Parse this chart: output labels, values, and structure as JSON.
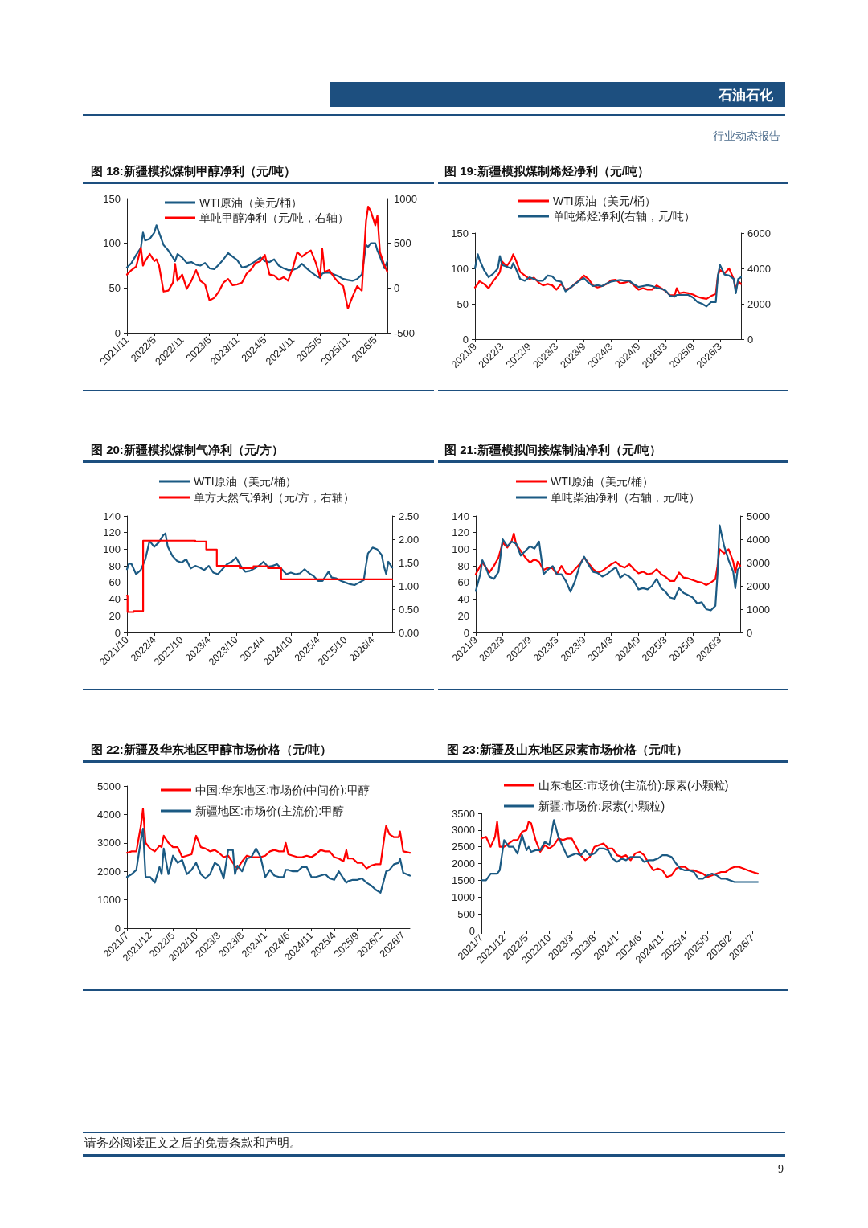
{
  "chart_data": [
    {
      "type": "other",
      "annotations": [
        "石油石化",
        "行业动态报告"
      ]
    },
    {
      "type": "line",
      "title": "图 18:新疆模拟煤制甲醇净利（元/吨）",
      "legend": "top",
      "xlim": [
        "2021-11",
        "2026-07-20"
      ],
      "xticks": [
        {
          "value": "2021-11",
          "label": "2021/11"
        },
        {
          "value": "2022-05",
          "label": "2022/5"
        },
        {
          "value": "2022-11",
          "label": "2022/11"
        },
        {
          "value": "2023-05",
          "label": "2023/5"
        },
        {
          "value": "2023-11",
          "label": "2023/11"
        },
        {
          "value": "2024-05",
          "label": "2024/5"
        },
        {
          "value": "2024-11",
          "label": "2024/11"
        },
        {
          "value": "2025-05",
          "label": "2025/5"
        },
        {
          "value": "2025-11",
          "label": "2025/11"
        },
        {
          "value": "2026-05",
          "label": "2026/5"
        }
      ],
      "ylim": [
        0,
        150
      ],
      "yticks": [
        0,
        50,
        100,
        150
      ],
      "y2lim": [
        -500,
        1000
      ],
      "y2ticks": [
        -500,
        0,
        500,
        1000
      ],
      "x": [
        "2021-11",
        "2021-12",
        "2022-01",
        "2022-02",
        "2022-02-15",
        "2022-03",
        "2022-04",
        "2022-05",
        "2022-05-15",
        "2022-06",
        "2022-07",
        "2022-08",
        "2022-09",
        "2022-09-15",
        "2022-10",
        "2022-11",
        "2022-12",
        "2023-01",
        "2023-02",
        "2023-03",
        "2023-04",
        "2023-05",
        "2023-06",
        "2023-07",
        "2023-08",
        "2023-09",
        "2023-10",
        "2023-11",
        "2023-12",
        "2024-01",
        "2024-02",
        "2024-03",
        "2024-04",
        "2024-05",
        "2024-06",
        "2024-07",
        "2024-08",
        "2024-09",
        "2024-10",
        "2024-11",
        "2024-12",
        "2025-01",
        "2025-02",
        "2025-03",
        "2025-04",
        "2025-05",
        "2025-05-15",
        "2025-06",
        "2025-07",
        "2025-08",
        "2025-09",
        "2025-10",
        "2025-11",
        "2025-12",
        "2026-01",
        "2026-02",
        "2026-03",
        "2026-03-15",
        "2026-04",
        "2026-05",
        "2026-05-15",
        "2026-06",
        "2026-07",
        "2026-07-20"
      ],
      "series": [
        {
          "name": "WTI原油（美元/桶）",
          "color": "#1b5a83",
          "values": [
            73,
            78,
            87,
            95,
            112,
            103,
            105,
            112,
            120,
            112,
            98,
            92,
            84,
            80,
            88,
            84,
            78,
            79,
            76,
            75,
            78,
            72,
            71,
            76,
            82,
            89,
            85,
            81,
            73,
            74,
            77,
            80,
            84,
            80,
            79,
            82,
            75,
            72,
            70,
            70,
            72,
            77,
            72,
            68,
            64,
            61,
            66,
            67,
            67,
            65,
            63,
            60,
            59,
            58,
            60,
            65,
            98,
            96,
            100,
            100,
            92,
            85,
            72,
            80
          ]
        },
        {
          "name": "单吨甲醇净利（元/吨，右轴）",
          "color": "#ff0000",
          "axis": "y2",
          "values": [
            150,
            200,
            240,
            450,
            250,
            300,
            380,
            300,
            320,
            250,
            -40,
            -30,
            60,
            270,
            80,
            150,
            -10,
            80,
            200,
            80,
            40,
            -140,
            -110,
            -40,
            60,
            100,
            30,
            40,
            60,
            160,
            210,
            280,
            300,
            370,
            150,
            140,
            90,
            120,
            80,
            220,
            400,
            350,
            390,
            420,
            290,
            120,
            440,
            180,
            200,
            120,
            60,
            20,
            -230,
            -100,
            20,
            -30,
            750,
            910,
            860,
            700,
            810,
            400,
            250,
            180
          ]
        }
      ]
    },
    {
      "type": "line",
      "title": "图 19:新疆模拟煤制烯烃净利（元/吨）",
      "legend": "top",
      "xlim": [
        "2021-09",
        "2026-07-20"
      ],
      "xticks": [
        {
          "value": "2021-09",
          "label": "2021/9"
        },
        {
          "value": "2022-03",
          "label": "2022/3"
        },
        {
          "value": "2022-09",
          "label": "2022/9"
        },
        {
          "value": "2023-03",
          "label": "2023/3"
        },
        {
          "value": "2023-09",
          "label": "2023/9"
        },
        {
          "value": "2024-03",
          "label": "2024/3"
        },
        {
          "value": "2024-09",
          "label": "2024/9"
        },
        {
          "value": "2025-03",
          "label": "2025/3"
        },
        {
          "value": "2025-09",
          "label": "2025/9"
        },
        {
          "value": "2026-03",
          "label": "2026/3"
        }
      ],
      "ylim": [
        0,
        150
      ],
      "yticks": [
        0,
        50,
        100,
        150
      ],
      "y2lim": [
        0,
        6000
      ],
      "y2ticks": [
        0,
        2000,
        4000,
        6000
      ],
      "x": [
        "2021-09",
        "2021-09-20",
        "2021-10",
        "2021-11",
        "2021-12",
        "2022-01",
        "2022-02",
        "2022-02-15",
        "2022-03",
        "2022-04",
        "2022-05",
        "2022-05-15",
        "2022-06",
        "2022-07",
        "2022-08",
        "2022-09",
        "2022-10",
        "2022-11",
        "2022-12",
        "2023-01",
        "2023-02",
        "2023-03",
        "2023-04",
        "2023-05",
        "2023-06",
        "2023-07",
        "2023-08",
        "2023-09",
        "2023-10",
        "2023-11",
        "2023-12",
        "2024-01",
        "2024-02",
        "2024-03",
        "2024-04",
        "2024-05",
        "2024-06",
        "2024-07",
        "2024-08",
        "2024-09",
        "2024-10",
        "2024-11",
        "2024-12",
        "2025-01",
        "2025-02",
        "2025-03",
        "2025-04",
        "2025-05",
        "2025-05-15",
        "2025-06",
        "2025-07",
        "2025-08",
        "2025-09",
        "2025-10",
        "2025-11",
        "2025-12",
        "2026-01",
        "2026-02",
        "2026-02-15",
        "2026-03",
        "2026-04",
        "2026-05",
        "2026-06",
        "2026-06-15",
        "2026-07",
        "2026-07-20"
      ],
      "series": [
        {
          "name": "WTI原油（美元/桶）",
          "color": "#ff0000",
          "values": [
            73,
            78,
            82,
            78,
            72,
            82,
            90,
            95,
            110,
            103,
            112,
            120,
            112,
            95,
            90,
            85,
            87,
            80,
            76,
            78,
            76,
            70,
            78,
            70,
            72,
            78,
            83,
            90,
            85,
            76,
            73,
            75,
            78,
            83,
            84,
            79,
            80,
            82,
            76,
            70,
            72,
            70,
            70,
            76,
            72,
            68,
            62,
            62,
            72,
            65,
            66,
            65,
            63,
            60,
            58,
            57,
            61,
            64,
            90,
            98,
            93,
            100,
            85,
            70,
            82,
            78
          ]
        },
        {
          "name": "单吨烯烃净利(右轴，元/吨）",
          "color": "#1b5a83",
          "axis": "y2",
          "values": [
            4000,
            4800,
            4500,
            3900,
            3500,
            3700,
            4000,
            4700,
            4200,
            4100,
            4000,
            4300,
            4000,
            3400,
            3300,
            3500,
            3400,
            3300,
            3300,
            3600,
            3550,
            3300,
            3250,
            2700,
            2900,
            3100,
            3300,
            3450,
            3200,
            3000,
            3050,
            3000,
            3150,
            3250,
            3300,
            3350,
            3300,
            3300,
            3100,
            2950,
            3000,
            3050,
            3000,
            2900,
            2850,
            2750,
            2450,
            2400,
            2500,
            2500,
            2500,
            2500,
            2350,
            2100,
            2000,
            1850,
            2100,
            2100,
            3600,
            4200,
            3650,
            3600,
            3400,
            2600,
            3400,
            3500
          ]
        }
      ]
    },
    {
      "type": "line",
      "title": "图 20:新疆模拟煤制气净利（元/方）",
      "legend": "top",
      "xlim": [
        "2021-10",
        "2026-08-10"
      ],
      "xticks": [
        {
          "value": "2021-10",
          "label": "2021/10"
        },
        {
          "value": "2022-04",
          "label": "2022/4"
        },
        {
          "value": "2022-10",
          "label": "2022/10"
        },
        {
          "value": "2023-04",
          "label": "2023/4"
        },
        {
          "value": "2023-10",
          "label": "2023/10"
        },
        {
          "value": "2024-04",
          "label": "2024/4"
        },
        {
          "value": "2024-10",
          "label": "2024/10"
        },
        {
          "value": "2025-04",
          "label": "2025/4"
        },
        {
          "value": "2025-10",
          "label": "2025/10"
        },
        {
          "value": "2026-04",
          "label": "2026/4"
        }
      ],
      "ylim": [
        0,
        140
      ],
      "yticks": [
        0,
        20,
        40,
        60,
        80,
        100,
        120,
        140
      ],
      "y2lim": [
        0,
        2.5
      ],
      "y2ticks": [
        {
          "value": 0,
          "label": "0.00"
        },
        {
          "value": 0.5,
          "label": "0.50"
        },
        {
          "value": 1,
          "label": "1.00"
        },
        {
          "value": 1.5,
          "label": "1.50"
        },
        {
          "value": 2,
          "label": "2.00"
        },
        {
          "value": 2.5,
          "label": "2.50"
        }
      ],
      "series": [
        {
          "name": "WTI原油（美元/桶）",
          "color": "#1b5a83",
          "x": [
            "2021-10",
            "2021-10-15",
            "2021-11",
            "2021-12",
            "2022-01",
            "2022-02",
            "2022-03",
            "2022-04",
            "2022-05",
            "2022-06",
            "2022-06-15",
            "2022-07",
            "2022-08",
            "2022-09",
            "2022-10",
            "2022-11",
            "2022-12",
            "2023-01",
            "2023-02",
            "2023-03",
            "2023-04",
            "2023-05",
            "2023-06",
            "2023-07",
            "2023-08",
            "2023-09",
            "2023-10",
            "2023-11",
            "2023-12",
            "2024-01",
            "2024-02",
            "2024-03",
            "2024-04",
            "2024-05",
            "2024-06",
            "2024-07",
            "2024-08",
            "2024-09",
            "2024-10",
            "2024-11",
            "2024-12",
            "2025-01",
            "2025-02",
            "2025-03",
            "2025-04",
            "2025-05",
            "2025-06-10",
            "2025-07",
            "2025-08",
            "2025-09",
            "2025-10",
            "2025-11",
            "2025-12",
            "2026-01",
            "2026-02",
            "2026-02-15",
            "2026-03",
            "2026-04",
            "2026-05",
            "2026-06",
            "2026-06-15",
            "2026-07",
            "2026-07-15",
            "2026-08-10"
          ],
          "values": [
            76,
            83,
            82,
            70,
            75,
            88,
            110,
            103,
            108,
            117,
            119,
            103,
            92,
            86,
            84,
            88,
            77,
            80,
            78,
            75,
            80,
            72,
            70,
            76,
            82,
            85,
            90,
            80,
            73,
            74,
            77,
            80,
            85,
            79,
            80,
            82,
            76,
            70,
            72,
            70,
            71,
            76,
            71,
            68,
            62,
            62,
            73,
            66,
            65,
            62,
            60,
            58,
            57,
            60,
            63,
            80,
            95,
            102,
            100,
            93,
            80,
            70,
            85,
            78
          ]
        },
        {
          "name": "单方天然气净利（元/方，右轴）",
          "color": "#ff0000",
          "type": "step",
          "axis": "y2",
          "x": [
            "2021-10",
            "2021-10-05",
            "2021-11-15",
            "2022-01-17",
            "2023-01-01",
            "2023-03-15",
            "2023-05-25",
            "2023-10-25",
            "2024-01-25",
            "2024-05-01",
            "2024-07-28",
            "2026-08-10"
          ],
          "values": [
            0.79,
            0.44,
            0.46,
            1.97,
            1.95,
            1.78,
            1.43,
            1.38,
            1.42,
            1.38,
            1.14,
            1.14
          ]
        }
      ]
    },
    {
      "type": "line",
      "title": "图 21:新疆模拟间接煤制油净利（元/吨）",
      "legend": "top",
      "xlim": [
        "2021-09",
        "2026-07-18"
      ],
      "xticks": [
        {
          "value": "2021-09",
          "label": "2021/9"
        },
        {
          "value": "2022-03",
          "label": "2022/3"
        },
        {
          "value": "2022-09",
          "label": "2022/9"
        },
        {
          "value": "2023-03",
          "label": "2023/3"
        },
        {
          "value": "2023-09",
          "label": "2023/9"
        },
        {
          "value": "2024-03",
          "label": "2024/3"
        },
        {
          "value": "2024-09",
          "label": "2024/9"
        },
        {
          "value": "2025-03",
          "label": "2025/3"
        },
        {
          "value": "2025-09",
          "label": "2025/9"
        },
        {
          "value": "2026-03",
          "label": "2026/3"
        }
      ],
      "ylim": [
        0,
        140
      ],
      "yticks": [
        0,
        20,
        40,
        60,
        80,
        100,
        120,
        140
      ],
      "y2lim": [
        0,
        5000
      ],
      "y2ticks": [
        0,
        1000,
        2000,
        3000,
        4000,
        5000
      ],
      "x": [
        "2021-09",
        "2021-10",
        "2021-10-15",
        "2021-11",
        "2021-12",
        "2022-01",
        "2022-02",
        "2022-03",
        "2022-04",
        "2022-05",
        "2022-05-15",
        "2022-06",
        "2022-07",
        "2022-08",
        "2022-09",
        "2022-10",
        "2022-11",
        "2022-12",
        "2023-01",
        "2023-02",
        "2023-03",
        "2023-04",
        "2023-05",
        "2023-06",
        "2023-07",
        "2023-08",
        "2023-09",
        "2023-10",
        "2023-11",
        "2023-12",
        "2024-01",
        "2024-02",
        "2024-03",
        "2024-04",
        "2024-05",
        "2024-06",
        "2024-07",
        "2024-08",
        "2024-09",
        "2024-10",
        "2024-11",
        "2024-12",
        "2025-01",
        "2025-02",
        "2025-03",
        "2025-04",
        "2025-05",
        "2025-06",
        "2025-07",
        "2025-08",
        "2025-09",
        "2025-10",
        "2025-11",
        "2025-12",
        "2026-01",
        "2026-02",
        "2026-02-15",
        "2026-03",
        "2026-04",
        "2026-05",
        "2026-06",
        "2026-06-15",
        "2026-07",
        "2026-07-18"
      ],
      "series": [
        {
          "name": "WTI原油（美元/桶）",
          "color": "#ff0000",
          "values": [
            70,
            80,
            84,
            80,
            72,
            80,
            90,
            108,
            102,
            110,
            119,
            105,
            98,
            90,
            84,
            88,
            85,
            75,
            78,
            77,
            70,
            80,
            71,
            70,
            76,
            82,
            90,
            83,
            76,
            72,
            74,
            78,
            82,
            85,
            80,
            78,
            82,
            76,
            71,
            73,
            70,
            71,
            76,
            70,
            67,
            62,
            62,
            72,
            66,
            65,
            63,
            61,
            60,
            57,
            60,
            64,
            80,
            100,
            95,
            100,
            85,
            72,
            85,
            80
          ]
        },
        {
          "name": "单吨柴油净利（右轴，元/吨）",
          "color": "#1b5a83",
          "axis": "y2",
          "values": [
            1780,
            2500,
            3100,
            2900,
            2400,
            2300,
            2600,
            4000,
            3700,
            3900,
            3850,
            3800,
            3300,
            3500,
            3700,
            3600,
            3900,
            2500,
            2700,
            2850,
            2500,
            2500,
            2200,
            1750,
            2200,
            2850,
            3250,
            2900,
            2600,
            2550,
            2400,
            2500,
            2650,
            2800,
            2350,
            2500,
            2400,
            2200,
            1850,
            1900,
            1850,
            2000,
            2300,
            1900,
            1750,
            1500,
            1450,
            1900,
            1700,
            1600,
            1500,
            1250,
            1300,
            1000,
            950,
            1150,
            2500,
            4600,
            3700,
            3100,
            2600,
            1900,
            2700,
            2800
          ]
        }
      ]
    },
    {
      "type": "line",
      "title": "图 22:新疆及华东地区甲醇市场价格（元/吨）",
      "legend": "top",
      "xlim": [
        "2021-07",
        "2026-08-14"
      ],
      "xticks": [
        {
          "value": "2021-07",
          "label": "2021/7"
        },
        {
          "value": "2021-12",
          "label": "2021/12"
        },
        {
          "value": "2022-05",
          "label": "2022/5"
        },
        {
          "value": "2022-10",
          "label": "2022/10"
        },
        {
          "value": "2023-03",
          "label": "2023/3"
        },
        {
          "value": "2023-08",
          "label": "2023/8"
        },
        {
          "value": "2024-01",
          "label": "2024/1"
        },
        {
          "value": "2024-06",
          "label": "2024/6"
        },
        {
          "value": "2024-11",
          "label": "2024/11"
        },
        {
          "value": "2025-04",
          "label": "2025/4"
        },
        {
          "value": "2025-09",
          "label": "2025/9"
        },
        {
          "value": "2026-02",
          "label": "2026/2"
        },
        {
          "value": "2026-07",
          "label": "2026/7"
        }
      ],
      "ylim": [
        0,
        5000
      ],
      "yticks": [
        0,
        1000,
        2000,
        3000,
        4000,
        5000
      ],
      "x": [
        "2021-07",
        "2021-08",
        "2021-09",
        "2021-10",
        "2021-10-15",
        "2021-11",
        "2021-12",
        "2022-01",
        "2022-02",
        "2022-02-15",
        "2022-03",
        "2022-04",
        "2022-05",
        "2022-06",
        "2022-07",
        "2022-08",
        "2022-09",
        "2022-10",
        "2022-11",
        "2022-12",
        "2023-01",
        "2023-02",
        "2023-03",
        "2023-04",
        "2023-05",
        "2023-06",
        "2023-06-15",
        "2023-07",
        "2023-08",
        "2023-09",
        "2023-10",
        "2023-11",
        "2023-12",
        "2024-01",
        "2024-02",
        "2024-03",
        "2024-04",
        "2024-05",
        "2024-05-15",
        "2024-06",
        "2024-07",
        "2024-08",
        "2024-09",
        "2024-10",
        "2024-11",
        "2024-12",
        "2025-01",
        "2025-02",
        "2025-03",
        "2025-04",
        "2025-05",
        "2025-06",
        "2025-06-20",
        "2025-07",
        "2025-08",
        "2025-09",
        "2025-10",
        "2025-11",
        "2025-12",
        "2026-01",
        "2026-02",
        "2026-03",
        "2026-03-10",
        "2026-04",
        "2026-05",
        "2026-06",
        "2026-06-10",
        "2026-07",
        "2026-08-14"
      ],
      "series": [
        {
          "name": "中国:华东地区:市场价(中间价):甲醇",
          "color": "#ff0000",
          "values": [
            2650,
            2700,
            2700,
            3600,
            4200,
            3000,
            2800,
            2700,
            2900,
            2850,
            3250,
            3000,
            2850,
            2850,
            2500,
            2550,
            2600,
            3250,
            2850,
            2800,
            2700,
            2750,
            2650,
            2500,
            2550,
            2300,
            2200,
            2100,
            2350,
            2550,
            2500,
            2500,
            2500,
            2550,
            2700,
            2750,
            2700,
            2700,
            3000,
            2600,
            2550,
            2500,
            2500,
            2550,
            2500,
            2600,
            2750,
            2700,
            2700,
            2500,
            2450,
            2350,
            2750,
            2450,
            2450,
            2300,
            2300,
            2100,
            2200,
            2250,
            2250,
            3300,
            3600,
            3300,
            3200,
            3200,
            3400,
            2700,
            2650
          ]
        },
        {
          "name": "新疆地区:市场价(主流价):甲醇",
          "color": "#1b5a83",
          "values": [
            1800,
            1900,
            2050,
            3100,
            3500,
            1800,
            1800,
            1600,
            2150,
            1900,
            2800,
            1900,
            2550,
            2300,
            2400,
            1900,
            2050,
            2300,
            1900,
            1750,
            1900,
            2300,
            2200,
            1750,
            2750,
            2750,
            1900,
            2200,
            2000,
            2450,
            2500,
            2800,
            2500,
            1800,
            2050,
            1850,
            1800,
            1800,
            2050,
            2050,
            2000,
            2000,
            2150,
            2150,
            1800,
            1800,
            1850,
            1900,
            1750,
            1700,
            2000,
            1750,
            1600,
            1650,
            1700,
            1700,
            1750,
            1600,
            1500,
            1350,
            1250,
            1800,
            2000,
            2050,
            2250,
            2300,
            2450,
            1950,
            1850
          ]
        }
      ]
    },
    {
      "type": "line",
      "title": "图 23:新疆及山东地区尿素市场价格（元/吨）",
      "legend": "top",
      "xlim": [
        "2021-07",
        "2026-08-06"
      ],
      "xticks": [
        {
          "value": "2021-07",
          "label": "2021/7"
        },
        {
          "value": "2021-12",
          "label": "2021/12"
        },
        {
          "value": "2022-05",
          "label": "2022/5"
        },
        {
          "value": "2022-10",
          "label": "2022/10"
        },
        {
          "value": "2023-03",
          "label": "2023/3"
        },
        {
          "value": "2023-08",
          "label": "2023/8"
        },
        {
          "value": "2024-01",
          "label": "2024/1"
        },
        {
          "value": "2024-06",
          "label": "2024/6"
        },
        {
          "value": "2024-11",
          "label": "2024/11"
        },
        {
          "value": "2025-04",
          "label": "2025/4"
        },
        {
          "value": "2025-09",
          "label": "2025/9"
        },
        {
          "value": "2026-02",
          "label": "2026/2"
        },
        {
          "value": "2026-07",
          "label": "2026/7"
        }
      ],
      "ylim": [
        0,
        3500
      ],
      "yticks": [
        0,
        500,
        1000,
        1500,
        2000,
        2500,
        3000,
        3500
      ],
      "x": [
        "2021-07",
        "2021-08",
        "2021-09",
        "2021-10",
        "2021-10-15",
        "2021-11",
        "2021-12",
        "2022-01",
        "2022-02",
        "2022-03",
        "2022-04",
        "2022-05",
        "2022-05-15",
        "2022-06",
        "2022-07",
        "2022-08",
        "2022-09",
        "2022-10",
        "2022-11",
        "2022-12",
        "2023-01",
        "2023-02",
        "2023-03",
        "2023-04",
        "2023-05",
        "2023-06",
        "2023-07",
        "2023-08",
        "2023-09",
        "2023-10",
        "2023-11",
        "2023-12",
        "2024-01",
        "2024-02",
        "2024-03",
        "2024-04",
        "2024-05",
        "2024-06",
        "2024-07",
        "2024-08",
        "2024-09",
        "2024-10",
        "2024-11",
        "2024-12",
        "2025-01",
        "2025-02",
        "2025-03",
        "2025-04",
        "2025-05",
        "2025-06",
        "2025-07",
        "2025-08",
        "2025-09",
        "2025-10",
        "2025-11",
        "2025-12",
        "2026-01",
        "2026-02",
        "2026-03",
        "2026-04",
        "2026-05",
        "2026-06",
        "2026-07",
        "2026-08-06"
      ],
      "series": [
        {
          "name": "山东地区:市场价(主流价):尿素(小颗粒)",
          "color": "#ff0000",
          "values": [
            2750,
            2800,
            2500,
            2800,
            3250,
            2500,
            2500,
            2600,
            2700,
            2700,
            2950,
            3000,
            3250,
            3200,
            2700,
            2350,
            2550,
            2450,
            2550,
            2750,
            2700,
            2750,
            2750,
            2500,
            2250,
            2100,
            2200,
            2500,
            2550,
            2600,
            2450,
            2450,
            2250,
            2200,
            2250,
            2100,
            2300,
            2350,
            2250,
            2000,
            1800,
            1850,
            1800,
            1600,
            1650,
            1850,
            1900,
            1900,
            1800,
            1800,
            1750,
            1700,
            1600,
            1650,
            1700,
            1750,
            1750,
            1850,
            1900,
            1900,
            1850,
            1800,
            1750,
            1700
          ]
        },
        {
          "name": "新疆:市场价:尿素(小颗粒)",
          "color": "#1b5a83",
          "values": [
            1500,
            1500,
            1700,
            1700,
            1700,
            1800,
            2700,
            2500,
            2500,
            2300,
            2850,
            2400,
            2500,
            2350,
            2400,
            2400,
            2650,
            2550,
            3300,
            2800,
            2500,
            2200,
            2250,
            2300,
            2250,
            2400,
            2250,
            2300,
            2450,
            2450,
            2400,
            2150,
            2050,
            2150,
            2100,
            2200,
            2200,
            2200,
            2050,
            2100,
            2100,
            2150,
            2250,
            2250,
            2200,
            2000,
            1850,
            1800,
            1800,
            1750,
            1550,
            1550,
            1650,
            1700,
            1650,
            1550,
            1550,
            1500,
            1450,
            1450,
            1450,
            1450,
            1450,
            1450
          ]
        }
      ]
    },
    {
      "type": "other",
      "annotations": [
        "请务必阅读正文之后的免责条款和声明。",
        "9"
      ]
    }
  ]
}
